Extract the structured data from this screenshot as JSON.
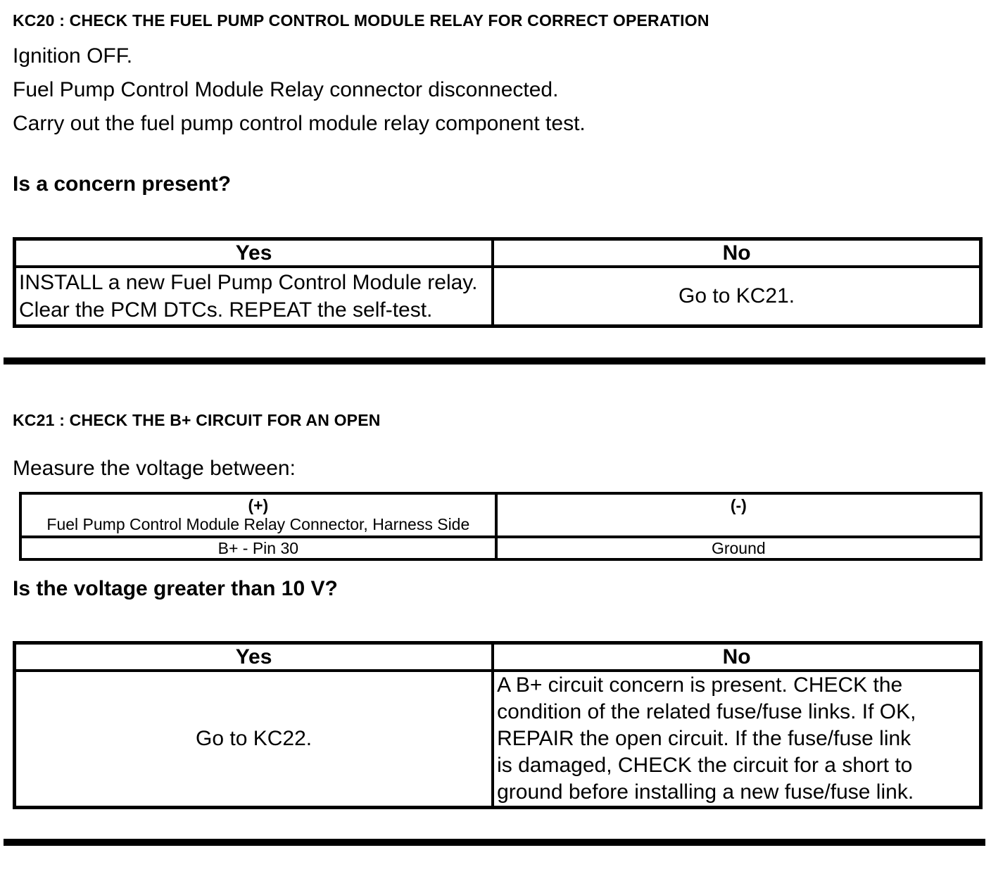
{
  "document": {
    "kc20": {
      "heading": "KC20 : CHECK THE FUEL PUMP CONTROL MODULE RELAY FOR CORRECT OPERATION",
      "steps": [
        "Ignition OFF.",
        "Fuel Pump Control Module Relay connector disconnected.",
        "Carry out the fuel pump control module relay component test."
      ],
      "question": "Is a concern present?",
      "decision_table": {
        "yes_header": "Yes",
        "no_header": "No",
        "yes_lines": [
          "INSTALL a new Fuel Pump Control Module relay.",
          "Clear the PCM DTCs. REPEAT the self-test."
        ],
        "no_action": "Go to KC21."
      }
    },
    "kc21": {
      "heading": "KC21 : CHECK THE B+ CIRCUIT FOR AN OPEN",
      "instruction": "Measure the voltage between:",
      "measurement_table": {
        "positive_header": "(+)",
        "positive_subheader": "Fuel Pump Control Module Relay Connector, Harness Side",
        "negative_header": "(-)",
        "positive_point": "B+ - Pin 30",
        "negative_point": "Ground"
      },
      "question": "Is the voltage greater than 10 V?",
      "decision_table": {
        "yes_header": "Yes",
        "no_header": "No",
        "yes_action": "Go to KC22.",
        "no_lines": [
          "A B+ circuit concern is present. CHECK the",
          "condition of the related fuse/fuse links. If OK,",
          "REPAIR the open circuit. If the fuse/fuse link",
          "is damaged, CHECK the circuit for a short to",
          "ground before installing a new fuse/fuse link."
        ]
      }
    },
    "colors": {
      "text": "#000000",
      "background": "#ffffff",
      "rule": "#000000"
    }
  }
}
